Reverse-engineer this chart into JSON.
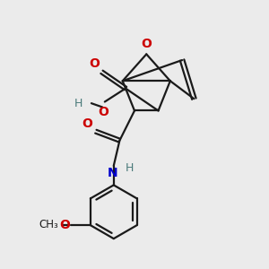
{
  "bg_color": "#ebebeb",
  "bond_color": "#1a1a1a",
  "o_color": "#cc0000",
  "n_color": "#0000cc",
  "h_color": "#4a7a7a",
  "line_width": 1.6,
  "figsize": [
    3.0,
    3.0
  ],
  "dpi": 100,
  "xlim": [
    0.5,
    9.5
  ],
  "ylim": [
    0.5,
    9.5
  ]
}
